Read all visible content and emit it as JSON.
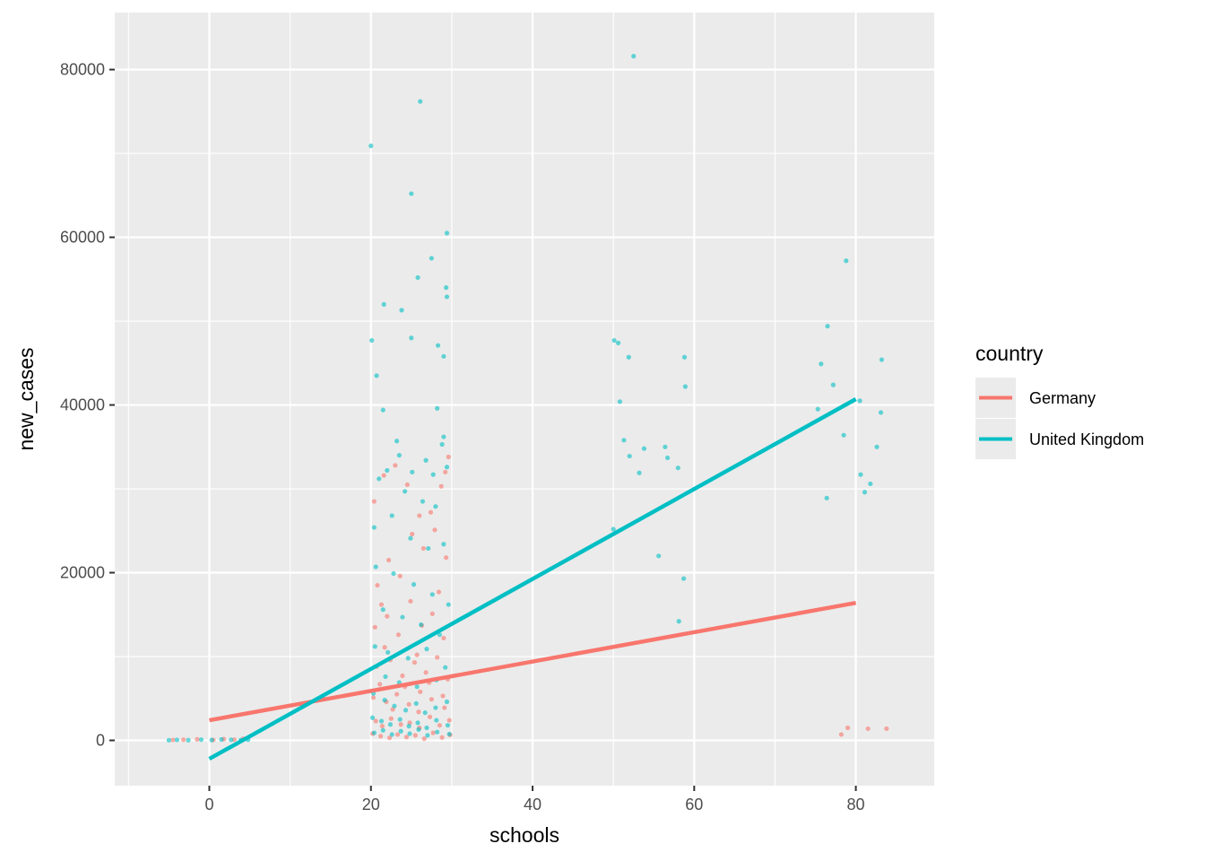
{
  "chart_data": {
    "type": "scatter",
    "xlabel": "schools",
    "ylabel": "new_cases",
    "xlim": [
      -11.7,
      89.7
    ],
    "ylim": [
      -5400,
      86800
    ],
    "x_ticks": [
      0,
      20,
      40,
      60,
      80
    ],
    "y_ticks": [
      0,
      20000,
      40000,
      60000,
      80000
    ],
    "x_tick_labels": [
      "0",
      "20",
      "40",
      "60",
      "80"
    ],
    "y_tick_labels": [
      "0",
      "20000",
      "40000",
      "60000",
      "80000"
    ],
    "grid": true,
    "legend": {
      "title": "country",
      "placement": "right"
    },
    "colors": {
      "panel": "#ebebeb",
      "grid": "#ffffff",
      "Germany": "#f8766d",
      "United Kingdom": "#00bfc4"
    },
    "series": [
      {
        "name": "Germany",
        "color": "#f8766d",
        "fit_line": {
          "x": [
            0,
            80
          ],
          "y": [
            2400,
            16400
          ]
        },
        "points": [
          [
            -4.5,
            50
          ],
          [
            -3.2,
            80
          ],
          [
            -1.5,
            120
          ],
          [
            0.5,
            60
          ],
          [
            1.8,
            150
          ],
          [
            3.1,
            90
          ],
          [
            4.2,
            200
          ],
          [
            20.4,
            28500
          ],
          [
            21.6,
            31600
          ],
          [
            23.0,
            32800
          ],
          [
            24.5,
            30500
          ],
          [
            26.0,
            26800
          ],
          [
            27.4,
            27200
          ],
          [
            28.7,
            30300
          ],
          [
            29.6,
            33800
          ],
          [
            29.2,
            32000
          ],
          [
            20.8,
            18500
          ],
          [
            22.2,
            21500
          ],
          [
            23.6,
            19600
          ],
          [
            25.1,
            24600
          ],
          [
            26.5,
            22900
          ],
          [
            27.9,
            25100
          ],
          [
            29.3,
            21800
          ],
          [
            21.3,
            16200
          ],
          [
            28.4,
            17700
          ],
          [
            20.5,
            13500
          ],
          [
            22.0,
            14800
          ],
          [
            23.4,
            12600
          ],
          [
            24.9,
            16600
          ],
          [
            26.3,
            13700
          ],
          [
            27.6,
            15100
          ],
          [
            29.0,
            12200
          ],
          [
            21.7,
            11100
          ],
          [
            25.7,
            10200
          ],
          [
            20.7,
            8800
          ],
          [
            22.4,
            9600
          ],
          [
            23.9,
            7700
          ],
          [
            25.4,
            9300
          ],
          [
            26.8,
            8100
          ],
          [
            28.2,
            9900
          ],
          [
            29.5,
            7300
          ],
          [
            21.1,
            6700
          ],
          [
            24.2,
            6400
          ],
          [
            27.2,
            6900
          ],
          [
            20.3,
            5100
          ],
          [
            21.9,
            4600
          ],
          [
            23.2,
            5500
          ],
          [
            24.7,
            4300
          ],
          [
            26.1,
            5800
          ],
          [
            27.5,
            4900
          ],
          [
            28.9,
            5300
          ],
          [
            22.7,
            3700
          ],
          [
            25.9,
            3400
          ],
          [
            29.1,
            3900
          ],
          [
            20.6,
            2300
          ],
          [
            21.4,
            1700
          ],
          [
            22.5,
            2600
          ],
          [
            23.7,
            1900
          ],
          [
            24.8,
            2100
          ],
          [
            26.0,
            1500
          ],
          [
            27.3,
            2800
          ],
          [
            28.5,
            1800
          ],
          [
            29.7,
            2400
          ],
          [
            20.2,
            800
          ],
          [
            21.2,
            500
          ],
          [
            22.3,
            300
          ],
          [
            23.3,
            700
          ],
          [
            24.4,
            400
          ],
          [
            25.5,
            600
          ],
          [
            26.6,
            200
          ],
          [
            27.7,
            900
          ],
          [
            28.8,
            350
          ],
          [
            29.8,
            650
          ],
          [
            78.2,
            700
          ],
          [
            79.0,
            1500
          ],
          [
            81.5,
            1400
          ],
          [
            83.8,
            1400
          ]
        ]
      },
      {
        "name": "United Kingdom",
        "color": "#00bfc4",
        "fit_line": {
          "x": [
            0,
            80
          ],
          "y": [
            -2200,
            40700
          ]
        },
        "points": [
          [
            -5.0,
            20
          ],
          [
            -4.0,
            60
          ],
          [
            -2.6,
            30
          ],
          [
            -1.0,
            90
          ],
          [
            0.3,
            40
          ],
          [
            1.5,
            110
          ],
          [
            2.7,
            70
          ],
          [
            3.9,
            50
          ],
          [
            4.8,
            80
          ],
          [
            20.0,
            70900
          ],
          [
            26.1,
            76200
          ],
          [
            25.0,
            65200
          ],
          [
            29.4,
            60500
          ],
          [
            27.5,
            57500
          ],
          [
            25.8,
            55200
          ],
          [
            29.3,
            54000
          ],
          [
            29.4,
            52900
          ],
          [
            21.6,
            52000
          ],
          [
            23.8,
            51300
          ],
          [
            20.1,
            47700
          ],
          [
            25.0,
            48000
          ],
          [
            28.3,
            47100
          ],
          [
            29.0,
            45800
          ],
          [
            20.7,
            43500
          ],
          [
            21.5,
            39400
          ],
          [
            28.2,
            39600
          ],
          [
            23.2,
            35700
          ],
          [
            29.0,
            36200
          ],
          [
            28.8,
            35300
          ],
          [
            23.5,
            34000
          ],
          [
            26.8,
            33400
          ],
          [
            22.0,
            32200
          ],
          [
            25.1,
            32000
          ],
          [
            27.7,
            31700
          ],
          [
            29.4,
            32600
          ],
          [
            21.0,
            31200
          ],
          [
            24.2,
            29700
          ],
          [
            26.4,
            28500
          ],
          [
            28.0,
            27900
          ],
          [
            20.4,
            25400
          ],
          [
            22.6,
            26800
          ],
          [
            24.9,
            24100
          ],
          [
            27.1,
            22900
          ],
          [
            29.0,
            23400
          ],
          [
            20.6,
            20700
          ],
          [
            22.8,
            19900
          ],
          [
            25.3,
            18600
          ],
          [
            27.6,
            17400
          ],
          [
            29.6,
            16200
          ],
          [
            21.5,
            15600
          ],
          [
            23.9,
            14700
          ],
          [
            26.2,
            13800
          ],
          [
            28.5,
            12600
          ],
          [
            20.5,
            11200
          ],
          [
            22.1,
            10500
          ],
          [
            24.6,
            9800
          ],
          [
            26.9,
            10900
          ],
          [
            29.2,
            8700
          ],
          [
            21.8,
            7600
          ],
          [
            23.5,
            6900
          ],
          [
            25.7,
            6400
          ],
          [
            28.1,
            7200
          ],
          [
            20.3,
            5600
          ],
          [
            21.7,
            4800
          ],
          [
            22.9,
            4100
          ],
          [
            24.3,
            3600
          ],
          [
            25.6,
            4400
          ],
          [
            26.7,
            3300
          ],
          [
            28.0,
            3900
          ],
          [
            29.4,
            4600
          ],
          [
            20.2,
            2700
          ],
          [
            21.3,
            2300
          ],
          [
            22.4,
            1900
          ],
          [
            23.6,
            2500
          ],
          [
            24.7,
            1700
          ],
          [
            25.8,
            2100
          ],
          [
            26.9,
            1500
          ],
          [
            28.1,
            2400
          ],
          [
            29.5,
            1800
          ],
          [
            20.4,
            900
          ],
          [
            21.5,
            1200
          ],
          [
            22.6,
            700
          ],
          [
            23.7,
            1100
          ],
          [
            24.8,
            800
          ],
          [
            25.9,
            1300
          ],
          [
            27.0,
            600
          ],
          [
            28.2,
            1000
          ],
          [
            29.7,
            750
          ],
          [
            52.5,
            81600
          ],
          [
            50.1,
            47700
          ],
          [
            50.6,
            47400
          ],
          [
            51.9,
            45700
          ],
          [
            50.8,
            40400
          ],
          [
            51.3,
            35800
          ],
          [
            52.0,
            33900
          ],
          [
            53.8,
            34800
          ],
          [
            53.2,
            31900
          ],
          [
            56.4,
            35000
          ],
          [
            56.7,
            33700
          ],
          [
            58.0,
            32500
          ],
          [
            58.8,
            45700
          ],
          [
            58.9,
            42200
          ],
          [
            50.0,
            25200
          ],
          [
            55.6,
            22000
          ],
          [
            58.7,
            19300
          ],
          [
            58.1,
            14200
          ],
          [
            78.8,
            57200
          ],
          [
            76.5,
            49400
          ],
          [
            75.7,
            44900
          ],
          [
            77.2,
            42400
          ],
          [
            75.3,
            39500
          ],
          [
            80.5,
            40500
          ],
          [
            78.5,
            36400
          ],
          [
            83.2,
            45400
          ],
          [
            83.1,
            39100
          ],
          [
            82.6,
            35000
          ],
          [
            76.4,
            28900
          ],
          [
            80.6,
            31700
          ],
          [
            81.8,
            30600
          ],
          [
            81.1,
            29600
          ]
        ]
      }
    ]
  }
}
